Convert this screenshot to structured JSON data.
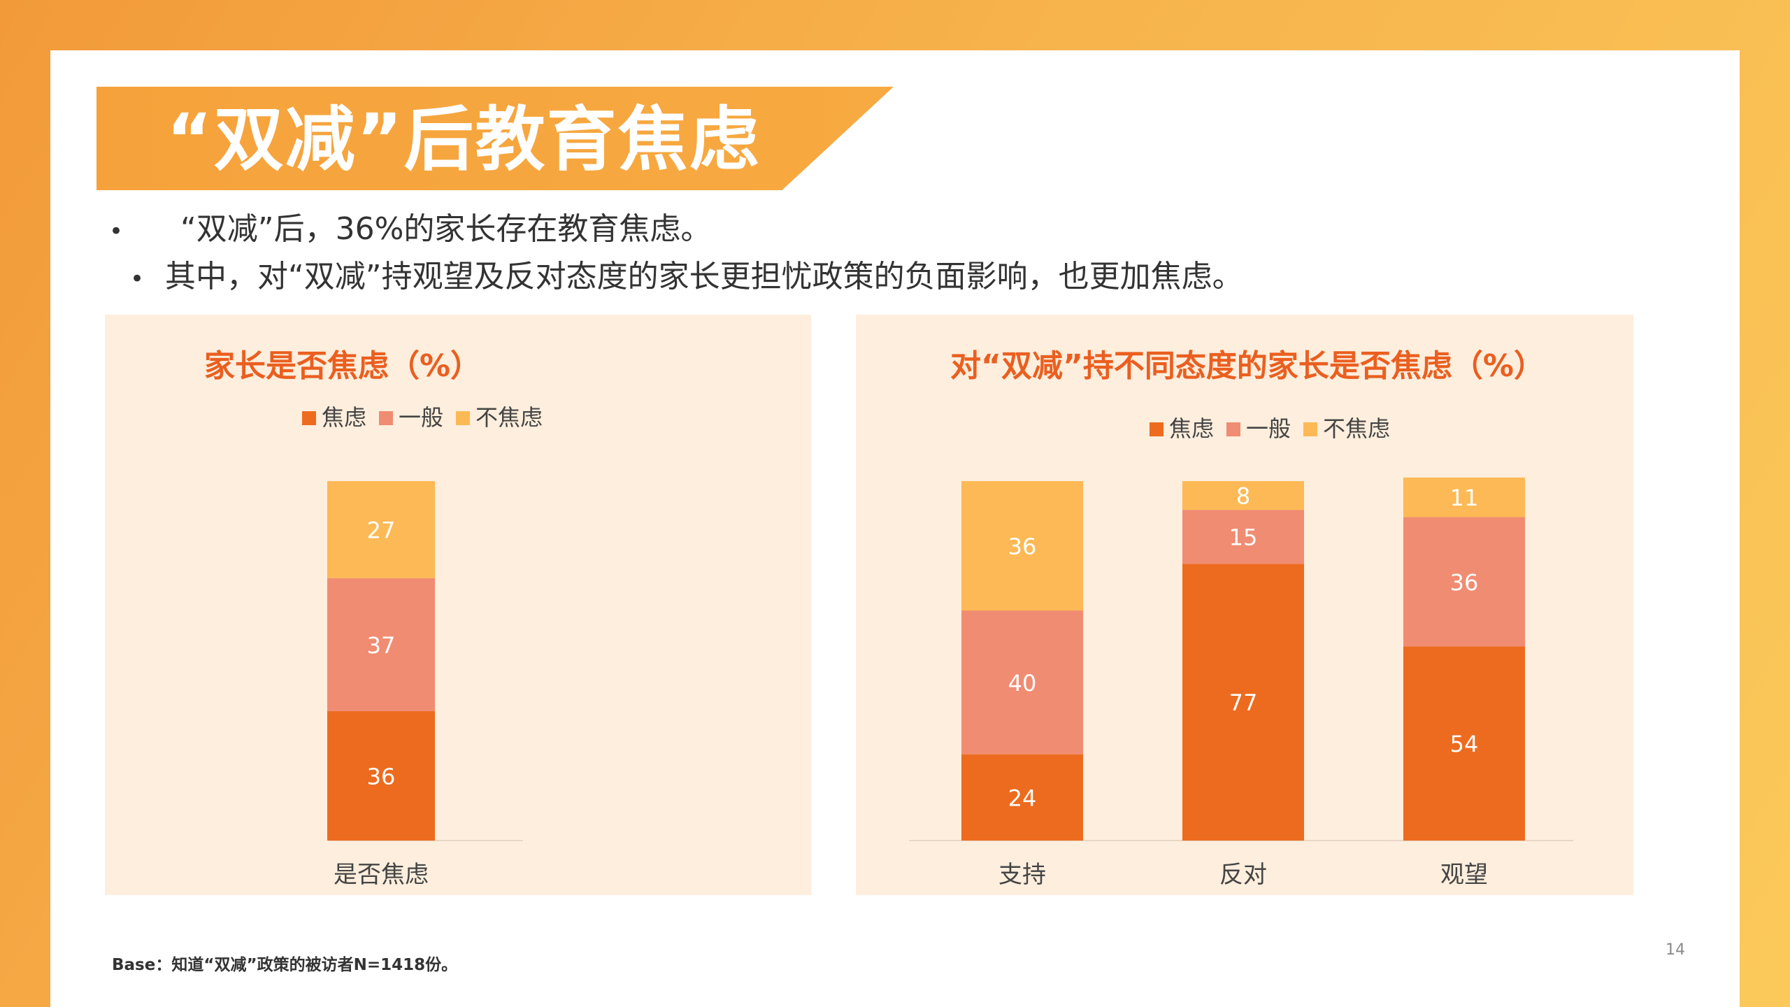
{
  "title": "“双减”后教育焦虑",
  "bullets": [
    "“双减”后，36%的家长存在教育焦虑。",
    "其中，对“双减”持观望及反对态度的家长更担忧政策的负面影响，也更加焦虑。"
  ],
  "bullet_symbol": "•",
  "base_note": "Base：知道“双减”政策的被访者N=1418份。",
  "page_number": "14",
  "colors": {
    "anxious": "#ed6b1f",
    "neutral": "#f08c72",
    "not_anxious": "#fdb955",
    "title_banner": "#f6a23c",
    "chart_title": "#ea5f20",
    "panel_bg": "#fdeedd"
  },
  "chart_data": [
    {
      "type": "bar",
      "stacked": true,
      "title": "家长是否焦虑（%）",
      "categories": [
        "是否焦虑"
      ],
      "series": [
        {
          "name": "焦虑",
          "values": [
            36
          ]
        },
        {
          "name": "一般",
          "values": [
            37
          ]
        },
        {
          "name": "不焦虑",
          "values": [
            27
          ]
        }
      ],
      "legend_position": "top",
      "ylim": [
        0,
        100
      ],
      "grid": false
    },
    {
      "type": "bar",
      "stacked": true,
      "title": "对“双减”持不同态度的家长是否焦虑（%）",
      "categories": [
        "支持",
        "反对",
        "观望"
      ],
      "series": [
        {
          "name": "焦虑",
          "values": [
            24,
            77,
            54
          ]
        },
        {
          "name": "一般",
          "values": [
            40,
            15,
            36
          ]
        },
        {
          "name": "不焦虑",
          "values": [
            36,
            8,
            11
          ]
        }
      ],
      "legend_position": "top",
      "ylim": [
        0,
        100
      ],
      "grid": false
    }
  ]
}
